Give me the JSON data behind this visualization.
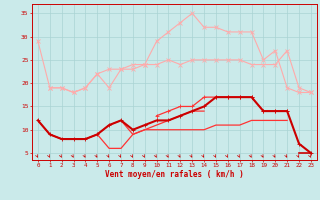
{
  "x": [
    0,
    1,
    2,
    3,
    4,
    5,
    6,
    7,
    8,
    9,
    10,
    11,
    12,
    13,
    14,
    15,
    16,
    17,
    18,
    19,
    20,
    21,
    22,
    23
  ],
  "bg_color": "#caeaea",
  "grid_color": "#aad4d4",
  "color_light": "#ffaaaa",
  "color_mid": "#ff3333",
  "color_dark": "#cc0000",
  "xlabel": "Vent moyen/en rafales ( km/h )",
  "yticks": [
    5,
    10,
    15,
    20,
    25,
    30,
    35
  ],
  "ylim": [
    3.5,
    37
  ],
  "xlim": [
    -0.5,
    23.5
  ],
  "curves": [
    {
      "y": [
        29,
        null,
        null,
        null,
        null,
        null,
        null,
        null,
        null,
        null,
        null,
        null,
        null,
        null,
        null,
        null,
        null,
        null,
        null,
        null,
        null,
        null,
        null,
        null
      ],
      "color": "#ffaaaa",
      "lw": 0.8,
      "marker": null,
      "ms": 2
    },
    {
      "y": [
        null,
        19,
        19,
        18,
        19,
        22,
        19,
        23,
        23,
        24,
        24,
        25,
        24,
        25,
        25,
        25,
        25,
        25,
        24,
        24,
        24,
        27,
        19,
        18
      ],
      "color": "#ffaaaa",
      "lw": 0.8,
      "marker": "x",
      "ms": 2.5
    },
    {
      "y": [
        29,
        19,
        19,
        18,
        19,
        22,
        23,
        23,
        24,
        24,
        29,
        31,
        33,
        35,
        32,
        32,
        31,
        31,
        31,
        25,
        27,
        19,
        18,
        18
      ],
      "color": "#ffaaaa",
      "lw": 0.8,
      "marker": "x",
      "ms": 2.5
    },
    {
      "y": [
        null,
        null,
        null,
        null,
        null,
        null,
        null,
        null,
        null,
        null,
        null,
        null,
        null,
        null,
        null,
        null,
        null,
        null,
        null,
        null,
        null,
        null,
        null,
        null
      ],
      "color": "#ff9999",
      "lw": 0.7,
      "marker": null,
      "ms": 2
    },
    {
      "y": [
        null,
        null,
        null,
        null,
        null,
        null,
        null,
        null,
        null,
        null,
        13,
        14,
        15,
        15,
        17,
        17,
        17,
        17,
        17,
        14,
        14,
        14,
        null,
        null
      ],
      "color": "#ff3333",
      "lw": 0.9,
      "marker": "+",
      "ms": 3
    },
    {
      "y": [
        12,
        9,
        8,
        8,
        8,
        9,
        11,
        12,
        9,
        10,
        11,
        12,
        13,
        14,
        14,
        null,
        null,
        null,
        null,
        null,
        null,
        null,
        null,
        null
      ],
      "color": "#ff3333",
      "lw": 0.9,
      "marker": null,
      "ms": 2
    },
    {
      "y": [
        null,
        9,
        8,
        8,
        8,
        9,
        6,
        6,
        9,
        10,
        10,
        10,
        10,
        10,
        10,
        11,
        11,
        11,
        12,
        12,
        12,
        12,
        null,
        null
      ],
      "color": "#ff3333",
      "lw": 0.9,
      "marker": null,
      "ms": 2
    },
    {
      "y": [
        12,
        9,
        8,
        8,
        8,
        9,
        11,
        12,
        10,
        11,
        12,
        12,
        13,
        14,
        15,
        17,
        17,
        17,
        17,
        14,
        14,
        14,
        7,
        5
      ],
      "color": "#cc0000",
      "lw": 1.5,
      "marker": "+",
      "ms": 3
    },
    {
      "y": [
        null,
        null,
        null,
        null,
        null,
        null,
        null,
        null,
        null,
        null,
        null,
        null,
        null,
        null,
        null,
        null,
        null,
        null,
        null,
        null,
        null,
        null,
        5,
        5
      ],
      "color": "#cc0000",
      "lw": 1.2,
      "marker": null,
      "ms": 2
    }
  ]
}
